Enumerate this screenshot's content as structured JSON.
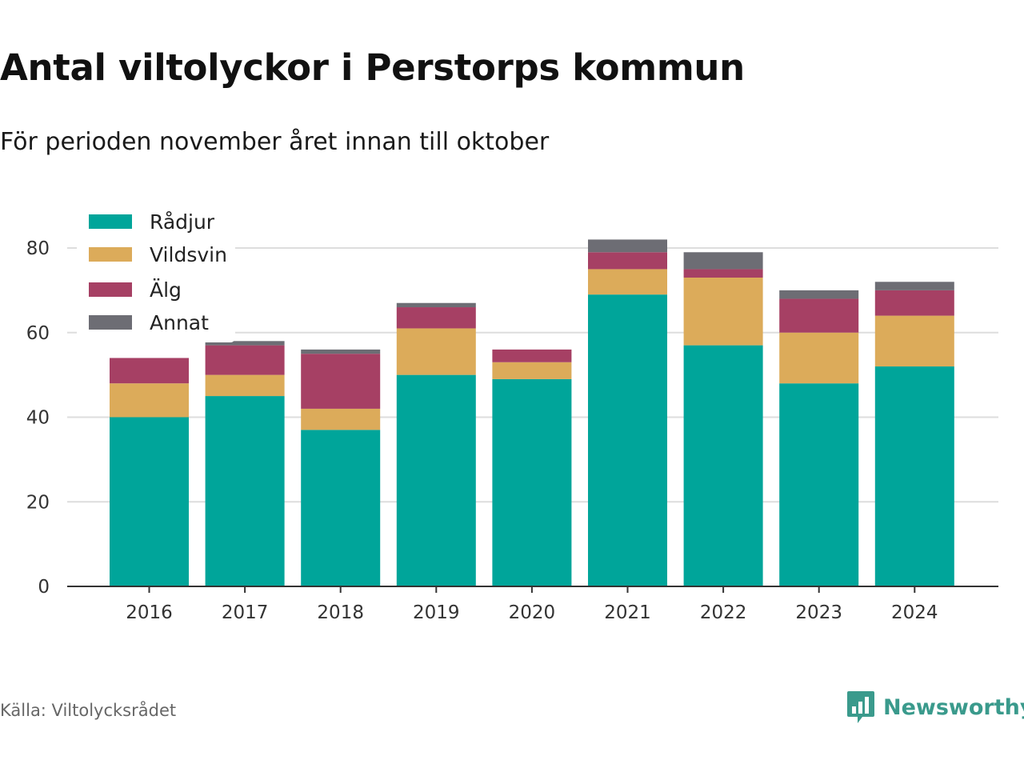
{
  "title": "Antal viltolyckor i Perstorps kommun",
  "subtitle": "För perioden november året innan till oktober",
  "source": "Källa: Viltolycksrådet",
  "brand": {
    "name": "Newsworthy",
    "icon": "bar-chart-speech-bubble-icon",
    "color": "#3a9a8c"
  },
  "chart_data": {
    "type": "bar",
    "stacked": true,
    "categories": [
      "2016",
      "2017",
      "2018",
      "2019",
      "2020",
      "2021",
      "2022",
      "2023",
      "2024"
    ],
    "series": [
      {
        "name": "Rådjur",
        "color": "#00a59a",
        "values": [
          40,
          45,
          37,
          50,
          49,
          69,
          57,
          48,
          52
        ]
      },
      {
        "name": "Vildsvin",
        "color": "#dcab5a",
        "values": [
          8,
          5,
          5,
          11,
          4,
          6,
          16,
          12,
          12
        ]
      },
      {
        "name": "Älg",
        "color": "#a64064",
        "values": [
          6,
          7,
          13,
          5,
          3,
          4,
          2,
          8,
          6
        ]
      },
      {
        "name": "Annat",
        "color": "#6d6d74",
        "values": [
          0,
          1,
          1,
          1,
          0,
          3,
          4,
          2,
          2
        ]
      }
    ],
    "yticks": [
      0,
      20,
      40,
      60,
      80
    ],
    "ylim": [
      0,
      90
    ],
    "xlabel": "",
    "ylabel": "",
    "grid": true,
    "legend": "top-left"
  }
}
